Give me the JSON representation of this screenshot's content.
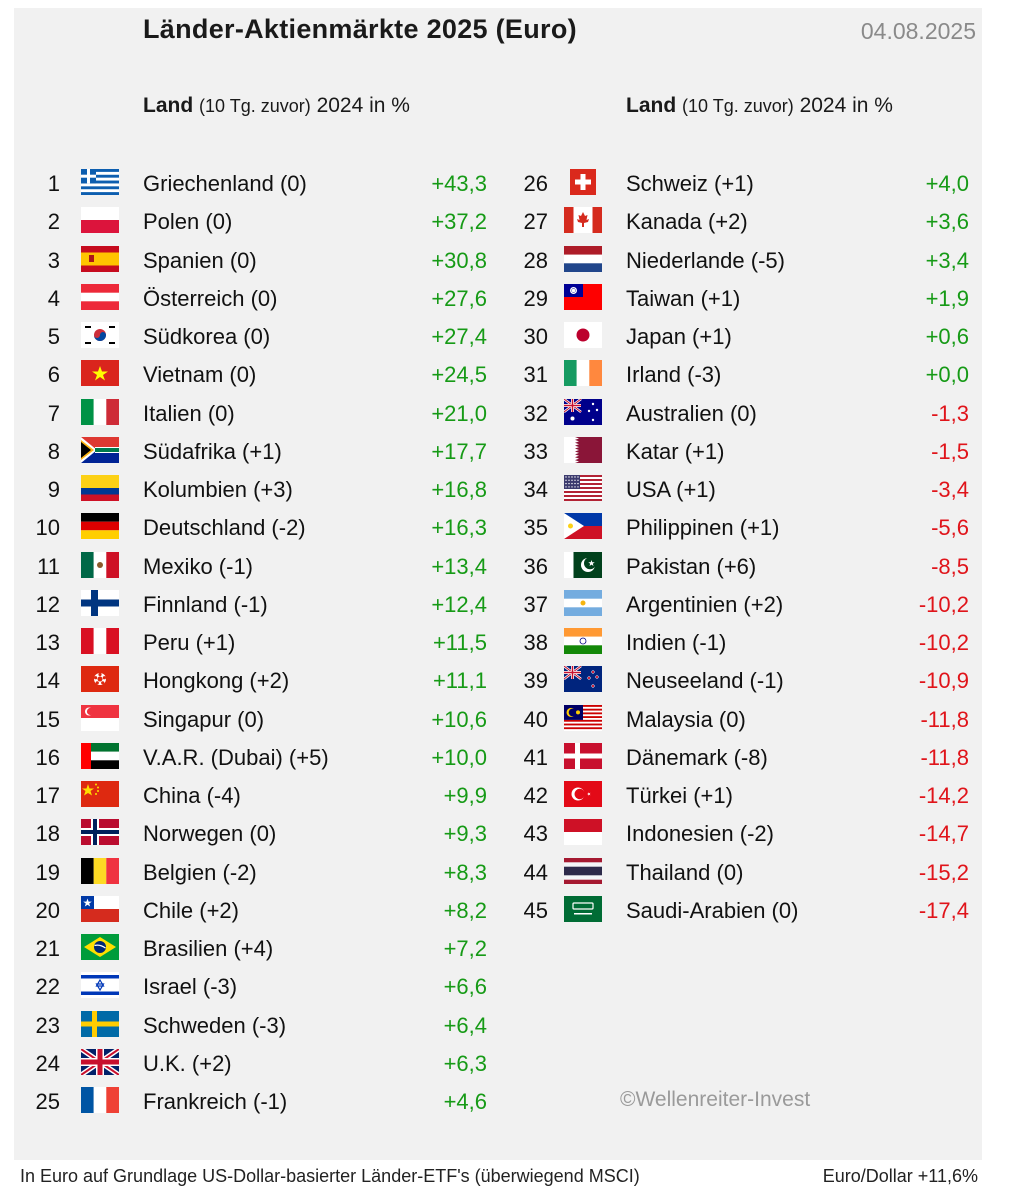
{
  "title": "Länder-Aktienmärkte 2025 (Euro)",
  "date": "04.08.2025",
  "header": {
    "land": "Land",
    "sub": "(10 Tg. zuvor)",
    "unit": "2024 in %"
  },
  "rows": [
    {
      "rank": "1",
      "name": "Griechenland (0)",
      "value": "+43,3",
      "flag": "greece-flag",
      "sign": "pos"
    },
    {
      "rank": "2",
      "name": "Polen (0)",
      "value": "+37,2",
      "flag": "poland-flag",
      "sign": "pos"
    },
    {
      "rank": "3",
      "name": "Spanien (0)",
      "value": "+30,8",
      "flag": "spain-flag",
      "sign": "pos"
    },
    {
      "rank": "4",
      "name": "Österreich (0)",
      "value": "+27,6",
      "flag": "austria-flag",
      "sign": "pos"
    },
    {
      "rank": "5",
      "name": "Südkorea (0)",
      "value": "+27,4",
      "flag": "south-korea-flag",
      "sign": "pos"
    },
    {
      "rank": "6",
      "name": "Vietnam (0)",
      "value": "+24,5",
      "flag": "vietnam-flag",
      "sign": "pos"
    },
    {
      "rank": "7",
      "name": "Italien (0)",
      "value": "+21,0",
      "flag": "italy-flag",
      "sign": "pos"
    },
    {
      "rank": "8",
      "name": "Südafrika (+1)",
      "value": "+17,7",
      "flag": "south-africa-flag",
      "sign": "pos"
    },
    {
      "rank": "9",
      "name": "Kolumbien (+3)",
      "value": "+16,8",
      "flag": "colombia-flag",
      "sign": "pos"
    },
    {
      "rank": "10",
      "name": "Deutschland (-2)",
      "value": "+16,3",
      "flag": "germany-flag",
      "sign": "pos"
    },
    {
      "rank": "11",
      "name": "Mexiko (-1)",
      "value": "+13,4",
      "flag": "mexico-flag",
      "sign": "pos"
    },
    {
      "rank": "12",
      "name": "Finnland (-1)",
      "value": "+12,4",
      "flag": "finland-flag",
      "sign": "pos"
    },
    {
      "rank": "13",
      "name": "Peru (+1)",
      "value": "+11,5",
      "flag": "peru-flag",
      "sign": "pos"
    },
    {
      "rank": "14",
      "name": "Hongkong (+2)",
      "value": "+11,1",
      "flag": "hong-kong-flag",
      "sign": "pos"
    },
    {
      "rank": "15",
      "name": "Singapur (0)",
      "value": "+10,6",
      "flag": "singapore-flag",
      "sign": "pos"
    },
    {
      "rank": "16",
      "name": "V.A.R. (Dubai) (+5)",
      "value": "+10,0",
      "flag": "uae-flag",
      "sign": "pos"
    },
    {
      "rank": "17",
      "name": "China (-4)",
      "value": "+9,9",
      "flag": "china-flag",
      "sign": "pos"
    },
    {
      "rank": "18",
      "name": "Norwegen (0)",
      "value": "+9,3",
      "flag": "norway-flag",
      "sign": "pos"
    },
    {
      "rank": "19",
      "name": "Belgien (-2)",
      "value": "+8,3",
      "flag": "belgium-flag",
      "sign": "pos"
    },
    {
      "rank": "20",
      "name": "Chile (+2)",
      "value": "+8,2",
      "flag": "chile-flag",
      "sign": "pos"
    },
    {
      "rank": "21",
      "name": "Brasilien (+4)",
      "value": "+7,2",
      "flag": "brazil-flag",
      "sign": "pos"
    },
    {
      "rank": "22",
      "name": "Israel (-3)",
      "value": "+6,6",
      "flag": "israel-flag",
      "sign": "pos"
    },
    {
      "rank": "23",
      "name": "Schweden (-3)",
      "value": "+6,4",
      "flag": "sweden-flag",
      "sign": "pos"
    },
    {
      "rank": "24",
      "name": "U.K. (+2)",
      "value": "+6,3",
      "flag": "uk-flag",
      "sign": "pos"
    },
    {
      "rank": "25",
      "name": "Frankreich (-1)",
      "value": "+4,6",
      "flag": "france-flag",
      "sign": "pos"
    },
    {
      "rank": "26",
      "name": "Schweiz (+1)",
      "value": "+4,0",
      "flag": "switzerland-flag",
      "sign": "pos"
    },
    {
      "rank": "27",
      "name": "Kanada (+2)",
      "value": "+3,6",
      "flag": "canada-flag",
      "sign": "pos"
    },
    {
      "rank": "28",
      "name": "Niederlande (-5)",
      "value": "+3,4",
      "flag": "netherlands-flag",
      "sign": "pos"
    },
    {
      "rank": "29",
      "name": "Taiwan (+1)",
      "value": "+1,9",
      "flag": "taiwan-flag",
      "sign": "pos"
    },
    {
      "rank": "30",
      "name": "Japan (+1)",
      "value": "+0,6",
      "flag": "japan-flag",
      "sign": "pos"
    },
    {
      "rank": "31",
      "name": "Irland (-3)",
      "value": "+0,0",
      "flag": "ireland-flag",
      "sign": "pos"
    },
    {
      "rank": "32",
      "name": "Australien (0)",
      "value": "-1,3",
      "flag": "australia-flag",
      "sign": "neg"
    },
    {
      "rank": "33",
      "name": "Katar (+1)",
      "value": "-1,5",
      "flag": "qatar-flag",
      "sign": "neg"
    },
    {
      "rank": "34",
      "name": "USA (+1)",
      "value": "-3,4",
      "flag": "usa-flag",
      "sign": "neg"
    },
    {
      "rank": "35",
      "name": "Philippinen (+1)",
      "value": "-5,6",
      "flag": "philippines-flag",
      "sign": "neg"
    },
    {
      "rank": "36",
      "name": "Pakistan (+6)",
      "value": "-8,5",
      "flag": "pakistan-flag",
      "sign": "neg"
    },
    {
      "rank": "37",
      "name": "Argentinien (+2)",
      "value": "-10,2",
      "flag": "argentina-flag",
      "sign": "neg"
    },
    {
      "rank": "38",
      "name": "Indien (-1)",
      "value": "-10,2",
      "flag": "india-flag",
      "sign": "neg"
    },
    {
      "rank": "39",
      "name": "Neuseeland (-1)",
      "value": "-10,9",
      "flag": "new-zealand-flag",
      "sign": "neg"
    },
    {
      "rank": "40",
      "name": "Malaysia (0)",
      "value": "-11,8",
      "flag": "malaysia-flag",
      "sign": "neg"
    },
    {
      "rank": "41",
      "name": "Dänemark (-8)",
      "value": "-11,8",
      "flag": "denmark-flag",
      "sign": "neg"
    },
    {
      "rank": "42",
      "name": "Türkei (+1)",
      "value": "-14,2",
      "flag": "turkey-flag",
      "sign": "neg"
    },
    {
      "rank": "43",
      "name": "Indonesien (-2)",
      "value": "-14,7",
      "flag": "indonesia-flag",
      "sign": "neg"
    },
    {
      "rank": "44",
      "name": "Thailand (0)",
      "value": "-15,2",
      "flag": "thailand-flag",
      "sign": "neg"
    },
    {
      "rank": "45",
      "name": "Saudi-Arabien (0)",
      "value": "-17,4",
      "flag": "saudi-arabia-flag",
      "sign": "neg"
    }
  ],
  "colors": {
    "positive": "#169a16",
    "negative": "#e0141a"
  },
  "copyright": "©Wellenreiter-Invest",
  "footer_left": "In Euro auf Grundlage US-Dollar-basierter Länder-ETF's (überwiegend MSCI)",
  "footer_right": "Euro/Dollar +11,6%"
}
